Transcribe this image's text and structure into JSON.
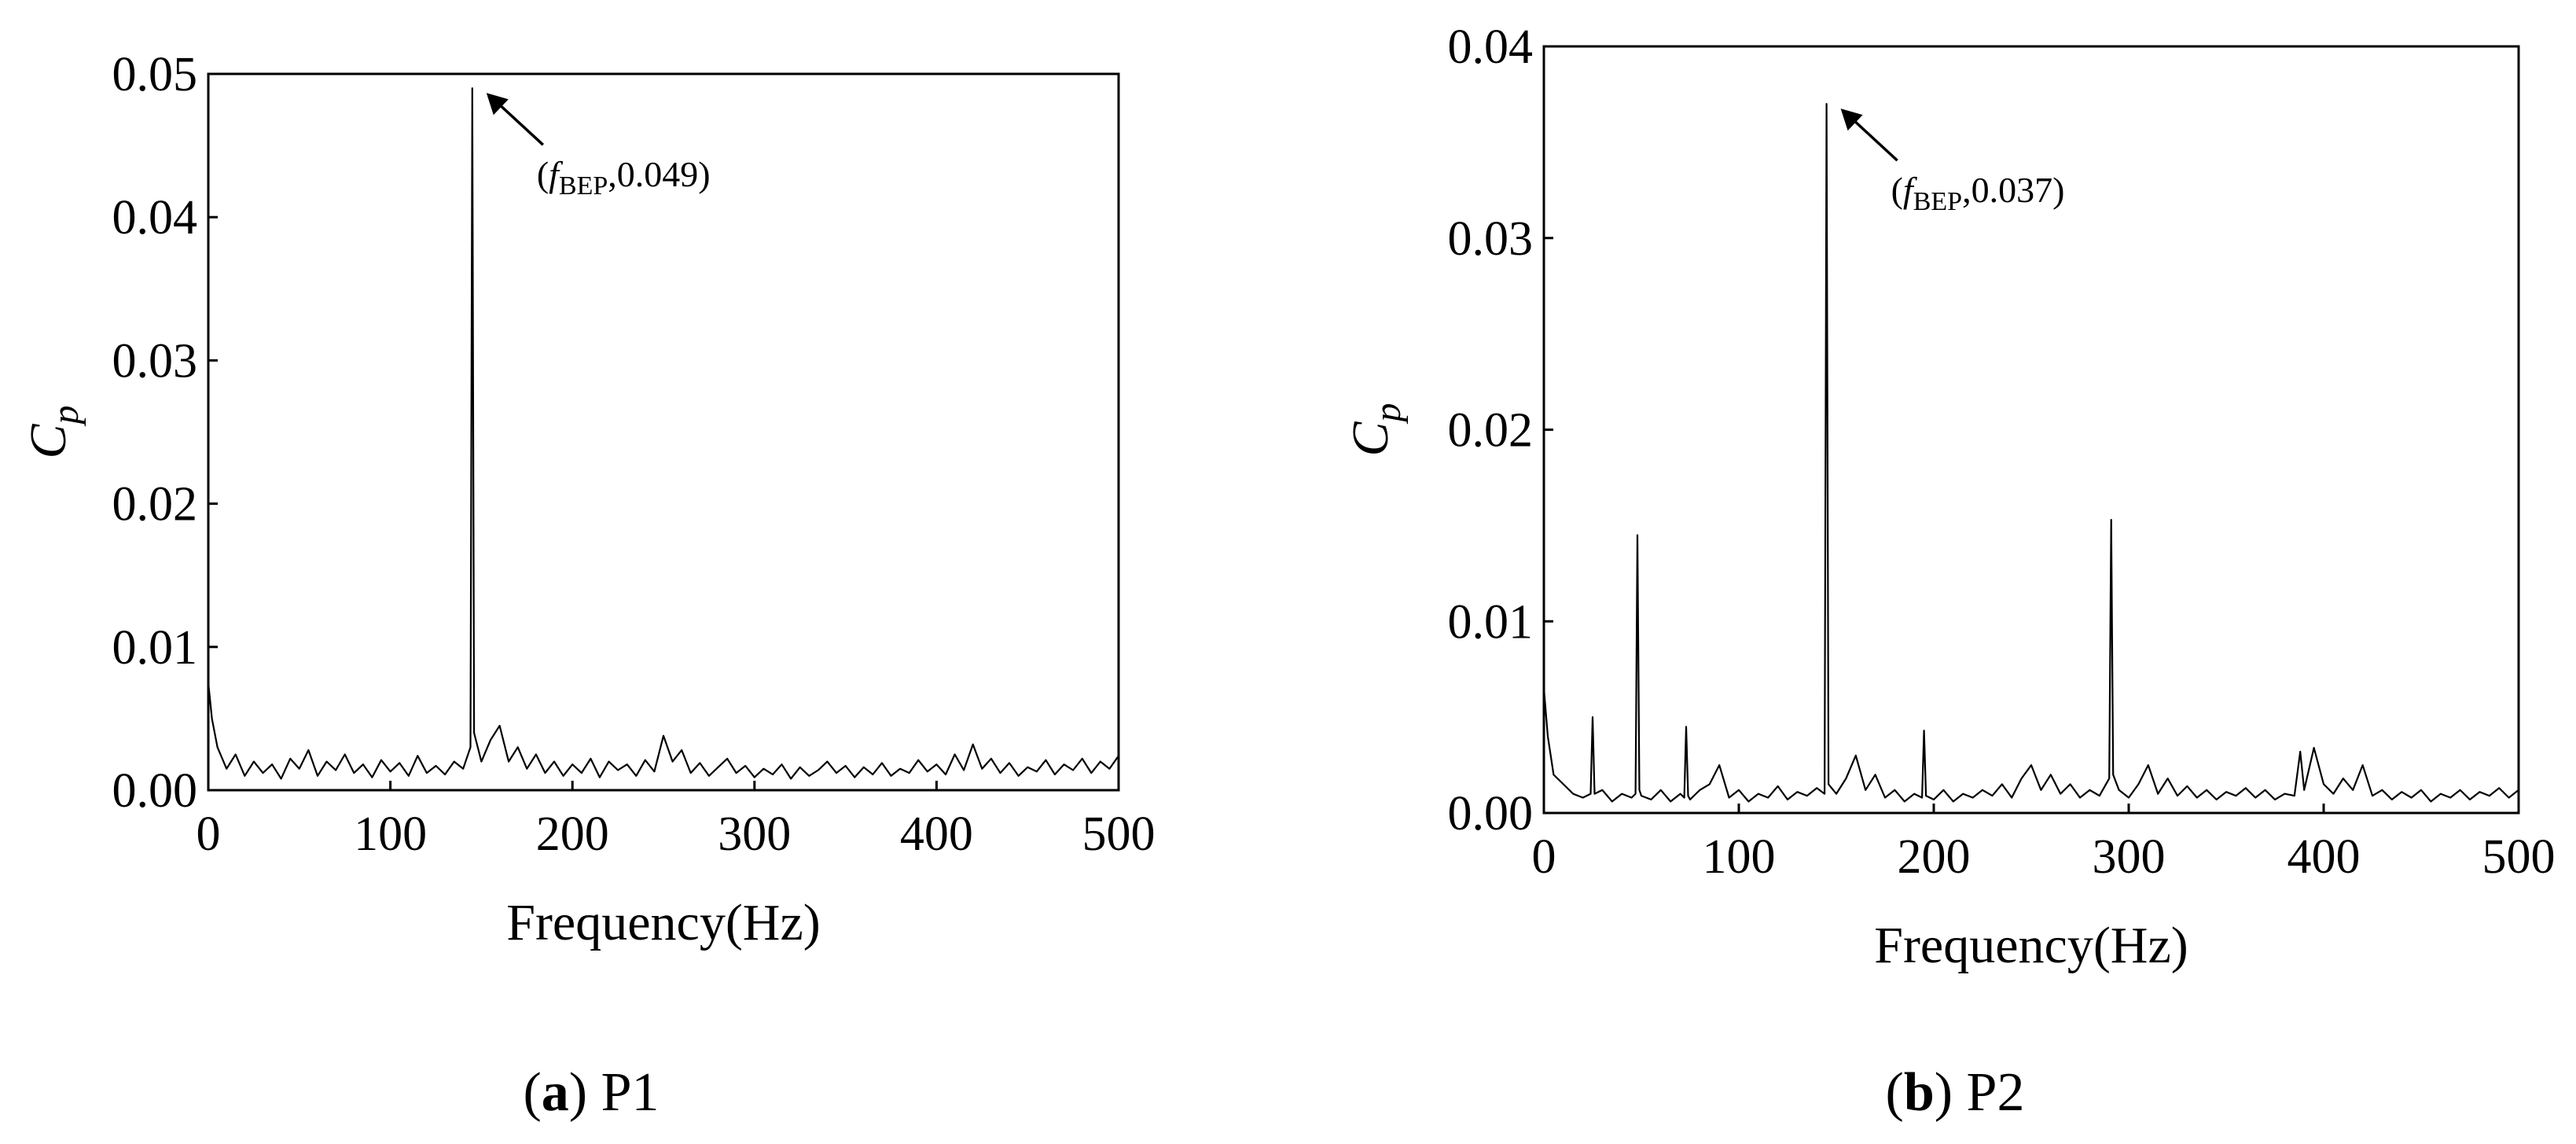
{
  "chart_data": [
    {
      "type": "line",
      "y_label": [
        "C",
        "p"
      ],
      "x_label": "Frequency(Hz)",
      "xlim": [
        0,
        500
      ],
      "xticks": [
        0,
        100,
        200,
        300,
        400,
        500
      ],
      "ylim": [
        0,
        0.05
      ],
      "yticks": [
        {
          "value": 0,
          "label": "0.00"
        },
        0.01,
        0.02,
        0.03,
        0.04,
        0.05
      ],
      "color": "#000000",
      "x": [
        0,
        2,
        5,
        10,
        15,
        20,
        25,
        30,
        35,
        40,
        45,
        50,
        55,
        60,
        65,
        70,
        75,
        80,
        85,
        90,
        95,
        100,
        105,
        110,
        115,
        120,
        125,
        130,
        135,
        140,
        144,
        145,
        146,
        150,
        155,
        160,
        165,
        170,
        175,
        180,
        185,
        190,
        195,
        200,
        205,
        210,
        215,
        220,
        225,
        230,
        235,
        240,
        245,
        250,
        255,
        260,
        265,
        270,
        275,
        280,
        285,
        290,
        295,
        300,
        305,
        310,
        315,
        320,
        325,
        330,
        335,
        340,
        345,
        350,
        355,
        360,
        365,
        370,
        375,
        380,
        385,
        390,
        395,
        400,
        405,
        410,
        415,
        420,
        425,
        430,
        435,
        440,
        445,
        450,
        455,
        460,
        465,
        470,
        475,
        480,
        485,
        490,
        495,
        500
      ],
      "values": [
        0.0075,
        0.005,
        0.003,
        0.0015,
        0.0025,
        0.001,
        0.002,
        0.0012,
        0.0018,
        0.0008,
        0.0022,
        0.0015,
        0.0028,
        0.001,
        0.002,
        0.0014,
        0.0025,
        0.0012,
        0.0018,
        0.0009,
        0.0021,
        0.0013,
        0.0019,
        0.001,
        0.0024,
        0.0012,
        0.0017,
        0.0011,
        0.002,
        0.0015,
        0.003,
        0.049,
        0.004,
        0.002,
        0.0035,
        0.0045,
        0.002,
        0.003,
        0.0015,
        0.0025,
        0.0012,
        0.002,
        0.001,
        0.0018,
        0.0012,
        0.0022,
        0.0009,
        0.002,
        0.0014,
        0.0018,
        0.001,
        0.0021,
        0.0013,
        0.0038,
        0.002,
        0.0028,
        0.0012,
        0.0019,
        0.001,
        0.0016,
        0.0022,
        0.0012,
        0.0017,
        0.0009,
        0.0015,
        0.0011,
        0.0018,
        0.0008,
        0.0016,
        0.001,
        0.0014,
        0.002,
        0.0012,
        0.0017,
        0.0009,
        0.0016,
        0.0011,
        0.0019,
        0.001,
        0.0015,
        0.0012,
        0.0021,
        0.0013,
        0.0018,
        0.0011,
        0.0025,
        0.0014,
        0.0032,
        0.0015,
        0.0022,
        0.0012,
        0.0019,
        0.001,
        0.0016,
        0.0013,
        0.0021,
        0.0011,
        0.0018,
        0.0014,
        0.0022,
        0.0012,
        0.002,
        0.0015,
        0.0024
      ],
      "annotation": [
        "(",
        "f",
        "BEP",
        ",0.049)"
      ],
      "caption": [
        "(",
        "a",
        ") P1"
      ]
    },
    {
      "type": "line",
      "y_label": [
        "C",
        "p"
      ],
      "x_label": "Frequency(Hz)",
      "xlim": [
        0,
        500
      ],
      "xticks": [
        0,
        100,
        200,
        300,
        400,
        500
      ],
      "ylim": [
        0,
        0.04
      ],
      "yticks": [
        {
          "value": 0,
          "label": "0.00"
        },
        0.01,
        0.02,
        0.03,
        0.04
      ],
      "color": "#000000",
      "x": [
        0,
        2,
        5,
        10,
        15,
        20,
        24,
        25,
        26,
        30,
        35,
        40,
        45,
        47,
        48,
        49,
        50,
        55,
        60,
        65,
        70,
        72,
        73,
        74,
        75,
        80,
        85,
        90,
        95,
        100,
        105,
        110,
        115,
        120,
        125,
        130,
        135,
        140,
        144,
        145,
        146,
        150,
        155,
        160,
        165,
        170,
        175,
        180,
        185,
        190,
        194,
        195,
        196,
        200,
        205,
        210,
        215,
        220,
        225,
        230,
        235,
        240,
        245,
        250,
        255,
        260,
        265,
        270,
        275,
        280,
        285,
        290,
        291,
        292,
        295,
        300,
        305,
        310,
        315,
        320,
        325,
        330,
        335,
        340,
        345,
        350,
        355,
        360,
        365,
        370,
        375,
        380,
        385,
        388,
        390,
        395,
        400,
        405,
        410,
        415,
        420,
        425,
        430,
        435,
        440,
        445,
        450,
        455,
        460,
        465,
        470,
        475,
        480,
        485,
        490,
        495,
        500
      ],
      "values": [
        0.0065,
        0.004,
        0.002,
        0.0015,
        0.001,
        0.0008,
        0.001,
        0.005,
        0.001,
        0.0012,
        0.0006,
        0.001,
        0.0008,
        0.001,
        0.0145,
        0.0012,
        0.0009,
        0.0007,
        0.0012,
        0.0006,
        0.001,
        0.0008,
        0.0045,
        0.0009,
        0.0007,
        0.0012,
        0.0015,
        0.0025,
        0.0008,
        0.0012,
        0.0006,
        0.001,
        0.0008,
        0.0014,
        0.0007,
        0.0011,
        0.0009,
        0.0013,
        0.001,
        0.037,
        0.0015,
        0.001,
        0.0018,
        0.003,
        0.0012,
        0.002,
        0.0008,
        0.0012,
        0.0006,
        0.001,
        0.0008,
        0.0043,
        0.0009,
        0.0007,
        0.0012,
        0.0006,
        0.001,
        0.0008,
        0.0012,
        0.0009,
        0.0015,
        0.0008,
        0.0018,
        0.0025,
        0.0012,
        0.002,
        0.001,
        0.0015,
        0.0008,
        0.0012,
        0.0009,
        0.0018,
        0.0153,
        0.002,
        0.0012,
        0.0008,
        0.0015,
        0.0025,
        0.001,
        0.0018,
        0.0009,
        0.0014,
        0.0008,
        0.0012,
        0.0007,
        0.0011,
        0.0009,
        0.0013,
        0.0008,
        0.0012,
        0.0007,
        0.001,
        0.0009,
        0.0032,
        0.0012,
        0.0034,
        0.0015,
        0.001,
        0.0018,
        0.0012,
        0.0025,
        0.0009,
        0.0012,
        0.0007,
        0.0011,
        0.0008,
        0.0012,
        0.0006,
        0.001,
        0.0008,
        0.0012,
        0.0007,
        0.0011,
        0.0009,
        0.0013,
        0.0008,
        0.0012
      ],
      "annotation": [
        "(",
        "f",
        "BEP",
        ",0.037)"
      ],
      "caption": [
        "(",
        "b",
        ") P2"
      ]
    }
  ]
}
